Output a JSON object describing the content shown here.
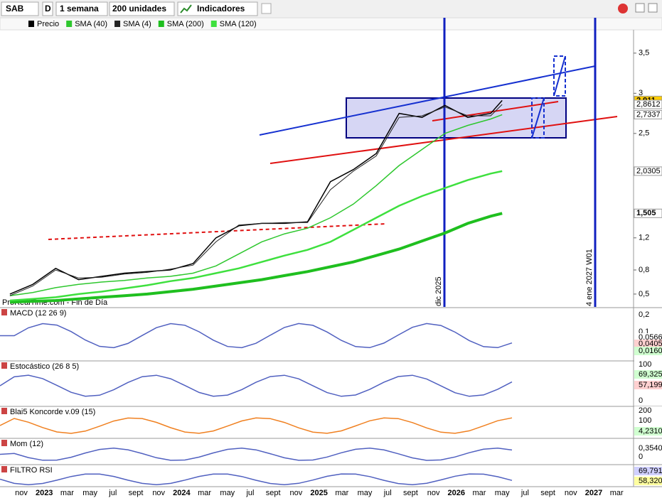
{
  "toolbar": {
    "symbol": "SAB",
    "mode": "D",
    "period": "1 semana",
    "units": "200 unidades",
    "indicators": "Indicadores"
  },
  "price_chart": {
    "type": "line",
    "source": "ProRealTime.com - Fin de Día",
    "x": [
      "2022-10",
      "2022-12",
      "2023-02",
      "2023-04",
      "2023-06",
      "2023-08",
      "2023-10",
      "2023-12",
      "2024-02",
      "2024-04",
      "2024-06",
      "2024-08",
      "2024-10",
      "2024-12",
      "2025-02",
      "2025-04",
      "2025-06",
      "2025-08",
      "2025-10",
      "2025-12",
      "2026-02",
      "2026-04",
      "2026-05"
    ],
    "series": [
      {
        "name": "Precio",
        "color": "#000000",
        "values": [
          0.5,
          0.62,
          0.82,
          0.68,
          0.72,
          0.76,
          0.78,
          0.8,
          0.88,
          1.2,
          1.35,
          1.38,
          1.38,
          1.4,
          1.9,
          2.05,
          2.25,
          2.75,
          2.7,
          2.85,
          2.7,
          2.75,
          2.911
        ]
      },
      {
        "name": "SMA (40)",
        "color": "#2ec72e",
        "values": [
          0.48,
          0.52,
          0.58,
          0.62,
          0.65,
          0.67,
          0.7,
          0.72,
          0.76,
          0.85,
          1.0,
          1.15,
          1.25,
          1.32,
          1.45,
          1.62,
          1.85,
          2.1,
          2.3,
          2.5,
          2.6,
          2.68,
          2.7337
        ]
      },
      {
        "name": "SMA (4)",
        "color": "#222222",
        "values": [
          0.48,
          0.6,
          0.8,
          0.7,
          0.71,
          0.75,
          0.77,
          0.81,
          0.86,
          1.15,
          1.36,
          1.38,
          1.39,
          1.39,
          1.8,
          2.03,
          2.22,
          2.7,
          2.72,
          2.83,
          2.72,
          2.72,
          2.8612
        ]
      },
      {
        "name": "SMA (200)",
        "color": "#1fbf1f",
        "values": [
          0.4,
          0.41,
          0.42,
          0.44,
          0.46,
          0.48,
          0.5,
          0.53,
          0.56,
          0.6,
          0.64,
          0.68,
          0.73,
          0.78,
          0.84,
          0.9,
          0.98,
          1.06,
          1.16,
          1.26,
          1.38,
          1.47,
          1.505
        ]
      },
      {
        "name": "SMA (120)",
        "color": "#3ee03e",
        "values": [
          0.42,
          0.44,
          0.46,
          0.5,
          0.53,
          0.57,
          0.61,
          0.66,
          0.7,
          0.76,
          0.82,
          0.9,
          0.98,
          1.05,
          1.15,
          1.3,
          1.45,
          1.6,
          1.72,
          1.82,
          1.92,
          2.0,
          2.0305
        ]
      }
    ],
    "ylim": [
      0.34,
      3.79
    ],
    "yticks": [
      {
        "value": 0.5,
        "label": "0,5"
      },
      {
        "value": 0.8,
        "label": "0,8"
      },
      {
        "value": 1.2,
        "label": "1,2"
      },
      {
        "value": 2.5,
        "label": "2,5"
      },
      {
        "value": 3,
        "label": "3"
      },
      {
        "value": 3.5,
        "label": "3,5"
      }
    ],
    "markers": [
      {
        "value": 2.911,
        "label": "2,911",
        "color": "#ffcc00"
      },
      {
        "value": 2.8612,
        "label": "2,8612",
        "color": "#ffffff"
      },
      {
        "value": 2.7337,
        "label": "2,7337",
        "color": "#ffffff"
      },
      {
        "value": 2.0305,
        "label": "2,0305",
        "color": "#ffffff"
      },
      {
        "value": 1.505,
        "label": "1,505",
        "color": "#ffffff"
      }
    ],
    "vlines": [
      "dic 2025",
      "4 ene 2027 W01"
    ]
  },
  "panels": [
    {
      "title": "MACD (12 26 9)",
      "labels": [
        "0,2",
        "0,1",
        "0,0566",
        "0,0405",
        "0,0160"
      ]
    },
    {
      "title": "Estocástico (26 8 5)",
      "labels": [
        "100",
        "69,325",
        "57,199",
        "0"
      ]
    },
    {
      "title": "Blai5 Koncorde v.09 (15)",
      "labels": [
        "200",
        "100",
        "4,2310"
      ]
    },
    {
      "title": "Mom (12)",
      "labels": [
        "0,3540",
        "0"
      ]
    },
    {
      "title": "FILTRO RSI",
      "labels": [
        "69,791",
        "58,320"
      ]
    }
  ],
  "x_axis": [
    "nov",
    "2023",
    "mar",
    "may",
    "jul",
    "sept",
    "nov",
    "2024",
    "mar",
    "may",
    "jul",
    "sept",
    "nov",
    "2025",
    "mar",
    "may",
    "jul",
    "sept",
    "nov",
    "2026",
    "mar",
    "may",
    "jul",
    "sept",
    "nov",
    "2027",
    "mar"
  ]
}
